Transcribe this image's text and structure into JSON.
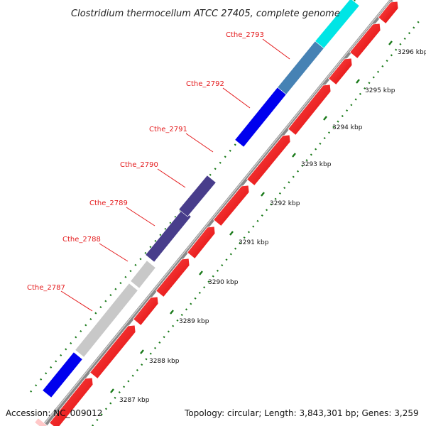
{
  "title": "Clostridium thermocellum ATCC 27405, complete genome",
  "footer": {
    "accession": "Accession: NC_009012",
    "stats": "Topology: circular; Length: 3,843,301 bp; Genes: 3,259"
  },
  "colors": {
    "cds_forward": "#ff0000",
    "backbone": "#888888",
    "gene_blue": "#0000ee",
    "gene_navy": "#483d8b",
    "gene_gray": "#c8c8c8",
    "gene_steel": "#4682b4",
    "gene_cyan": "#00e5e5",
    "tick_green": "#1a7a1a",
    "label_red": "#e41a1c"
  },
  "gene_labels": [
    {
      "text": "Cthe_2787"
    },
    {
      "text": "Cthe_2788"
    },
    {
      "text": "Cthe_2789"
    },
    {
      "text": "Cthe_2790"
    },
    {
      "text": "Cthe_2791"
    },
    {
      "text": "Cthe_2792"
    },
    {
      "text": "Cthe_2793"
    }
  ],
  "tick_labels": [
    {
      "text": "3287 kbp"
    },
    {
      "text": "3288 kbp"
    },
    {
      "text": "3289 kbp"
    },
    {
      "text": "3290 kbp"
    },
    {
      "text": "3291 kbp"
    },
    {
      "text": "3292 kbp"
    },
    {
      "text": "3293 kbp"
    },
    {
      "text": "3294 kbp"
    },
    {
      "text": "3295 kbp"
    },
    {
      "text": "3296 kbp"
    }
  ]
}
